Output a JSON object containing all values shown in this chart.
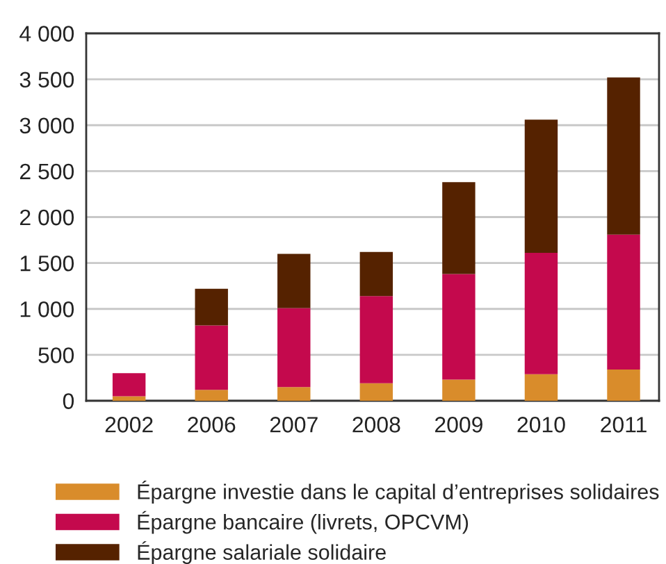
{
  "chart_data": {
    "type": "bar",
    "stacked": true,
    "categories": [
      "2002",
      "2006",
      "2007",
      "2008",
      "2009",
      "2010",
      "2011"
    ],
    "series": [
      {
        "name": "Épargne investie dans le capital d’entreprises solidaires",
        "color": "#d98c2b",
        "values": [
          50,
          120,
          150,
          190,
          230,
          290,
          340
        ]
      },
      {
        "name": "Épargne bancaire (livrets, OPCVM)",
        "color": "#c4094d",
        "values": [
          250,
          700,
          860,
          950,
          1150,
          1320,
          1470
        ]
      },
      {
        "name": "Épargne salariale solidaire",
        "color": "#552200",
        "values": [
          null,
          400,
          590,
          480,
          1000,
          1450,
          1710
        ]
      }
    ],
    "ylim": [
      0,
      4000
    ],
    "yticks": [
      0,
      500,
      {
        "value": 1000,
        "label": "1 000"
      },
      {
        "value": 1500,
        "label": "1 500"
      },
      {
        "value": 2000,
        "label": "2 000"
      },
      {
        "value": 2500,
        "label": "2 500"
      },
      {
        "value": 3000,
        "label": "3 000"
      },
      {
        "value": 3500,
        "label": "3 500"
      },
      {
        "value": 4000,
        "label": "4 000"
      }
    ],
    "grid": "y",
    "legend": "bottom"
  }
}
